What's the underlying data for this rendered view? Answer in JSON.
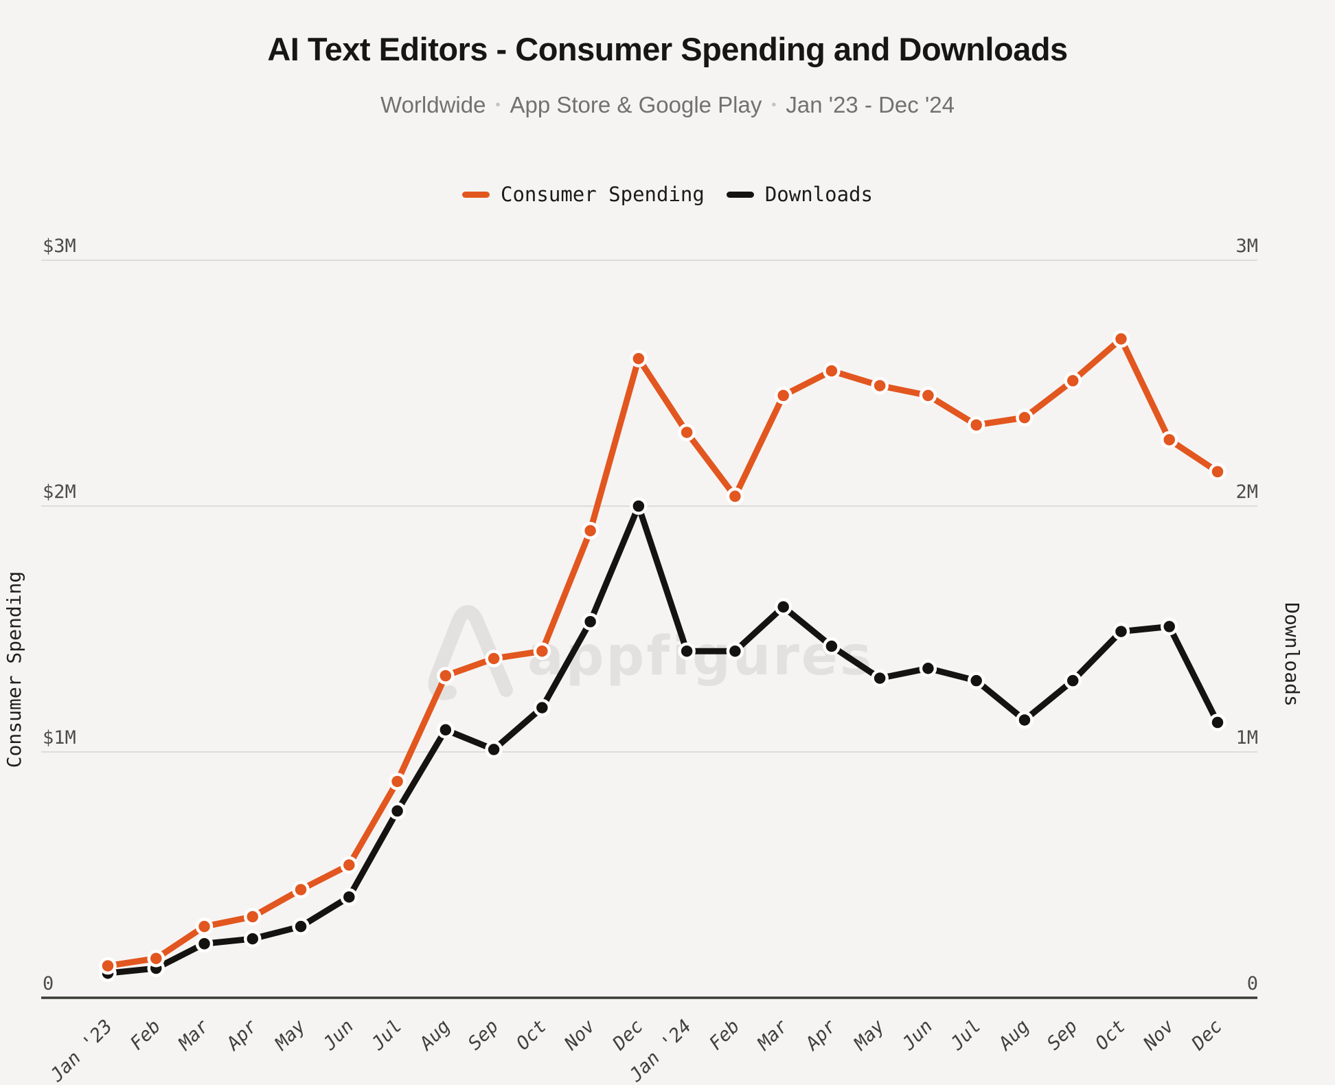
{
  "header": {
    "title": "AI Text Editors - Consumer Spending and Downloads",
    "subtitle_parts": [
      "Worldwide",
      "App Store & Google Play",
      "Jan '23 - Dec '24"
    ],
    "separator": "•"
  },
  "legend": [
    {
      "label": "Consumer Spending",
      "color": "#e2561f"
    },
    {
      "label": "Downloads",
      "color": "#151310"
    }
  ],
  "watermark": {
    "text": "appfigures"
  },
  "colors": {
    "background": "#f5f4f2",
    "gridline": "#dddcda",
    "axis_line": "#3b3b38",
    "spending_series": "#e2561f",
    "downloads_series": "#151310",
    "point_ring": "#ffffff",
    "watermark": "#e2e1df"
  },
  "chart_data": {
    "type": "line",
    "title": "AI Text Editors - Consumer Spending and Downloads",
    "subtitle": "Worldwide • App Store & Google Play • Jan '23 - Dec '24",
    "unit": "millions",
    "grid": true,
    "legend_position": "top",
    "categories": [
      "Jan '23",
      "Feb",
      "Mar",
      "Apr",
      "May",
      "Jun",
      "Jul",
      "Aug",
      "Sep",
      "Oct",
      "Nov",
      "Dec",
      "Jan '24",
      "Feb",
      "Mar",
      "Apr",
      "May",
      "Jun",
      "Jul",
      "Aug",
      "Sep",
      "Oct",
      "Nov",
      "Dec"
    ],
    "series": [
      {
        "name": "Consumer Spending",
        "slug": "consumer-spending",
        "axis": "left",
        "color": "#e2561f",
        "values": [
          0.13,
          0.16,
          0.29,
          0.33,
          0.44,
          0.54,
          0.88,
          1.31,
          1.38,
          1.41,
          1.9,
          2.6,
          2.3,
          2.04,
          2.45,
          2.55,
          2.49,
          2.45,
          2.33,
          2.36,
          2.51,
          2.68,
          2.27,
          2.14
        ]
      },
      {
        "name": "Downloads",
        "slug": "downloads",
        "axis": "right",
        "color": "#151310",
        "values": [
          0.1,
          0.12,
          0.22,
          0.24,
          0.29,
          0.41,
          0.76,
          1.09,
          1.01,
          1.18,
          1.53,
          2.0,
          1.41,
          1.41,
          1.59,
          1.43,
          1.3,
          1.34,
          1.29,
          1.13,
          1.29,
          1.49,
          1.51,
          1.12
        ]
      }
    ],
    "left_axis": {
      "title": "Consumer Spending",
      "range_millions": [
        0,
        3
      ],
      "ticks": [
        {
          "label": "$3M",
          "value": 3
        },
        {
          "label": "$2M",
          "value": 2
        },
        {
          "label": "$1M",
          "value": 1
        },
        {
          "label": "0",
          "value": 0
        }
      ]
    },
    "right_axis": {
      "title": "Downloads",
      "range_millions": [
        0,
        3
      ],
      "ticks": [
        {
          "label": "3M",
          "value": 3
        },
        {
          "label": "2M",
          "value": 2
        },
        {
          "label": "1M",
          "value": 1
        },
        {
          "label": "0",
          "value": 0
        }
      ]
    }
  }
}
